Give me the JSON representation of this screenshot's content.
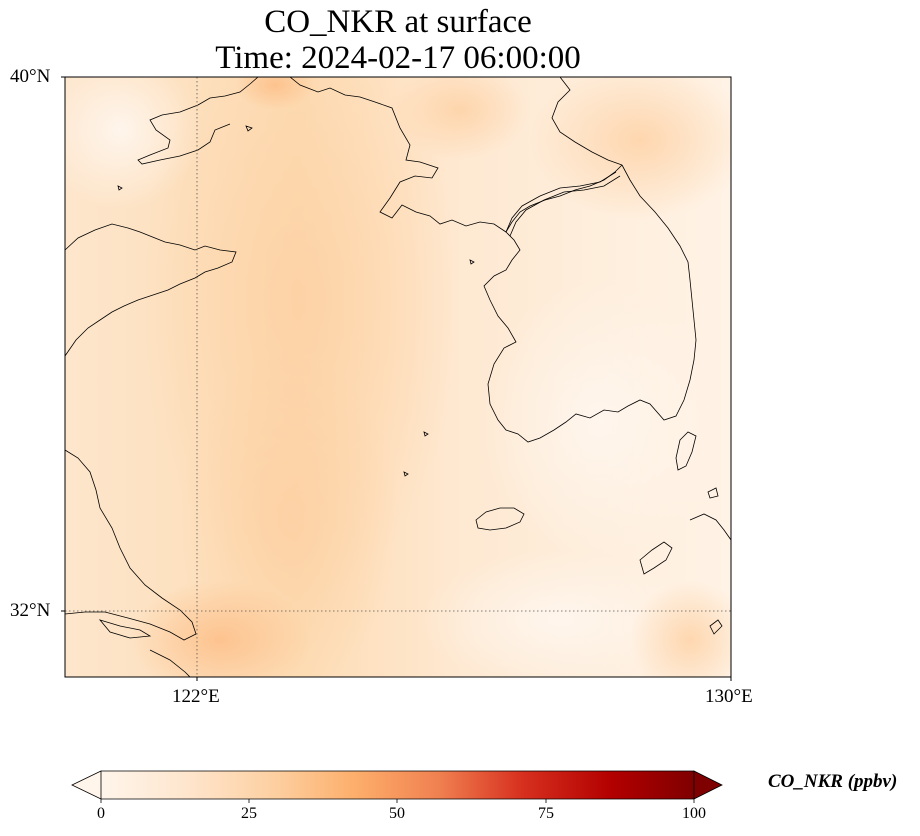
{
  "title": {
    "line1": "CO_NKR at surface",
    "line2": "Time: 2024-02-17 06:00:00"
  },
  "map": {
    "lat_labels": [
      "40°N",
      "32°N"
    ],
    "lon_labels": [
      "122°E",
      "130°E"
    ],
    "lon_range": [
      120,
      130
    ],
    "lat_range": [
      31,
      40
    ],
    "gridlines": "dotted",
    "field_color_low": "#fff5eb",
    "field_color_mid": "#fdd9b0",
    "coastline_color": "#000000"
  },
  "colorbar": {
    "label": "CO_NKR (ppbv)",
    "ticks": [
      "0",
      "25",
      "50",
      "75",
      "100"
    ],
    "range": [
      0,
      100
    ],
    "extend": "both",
    "colormap": "Oranges-Reds",
    "colors": [
      "#fff5eb",
      "#fee6ce",
      "#fdd0a2",
      "#fdae6b",
      "#f08050",
      "#d7301f",
      "#b30000",
      "#7f0000"
    ]
  }
}
